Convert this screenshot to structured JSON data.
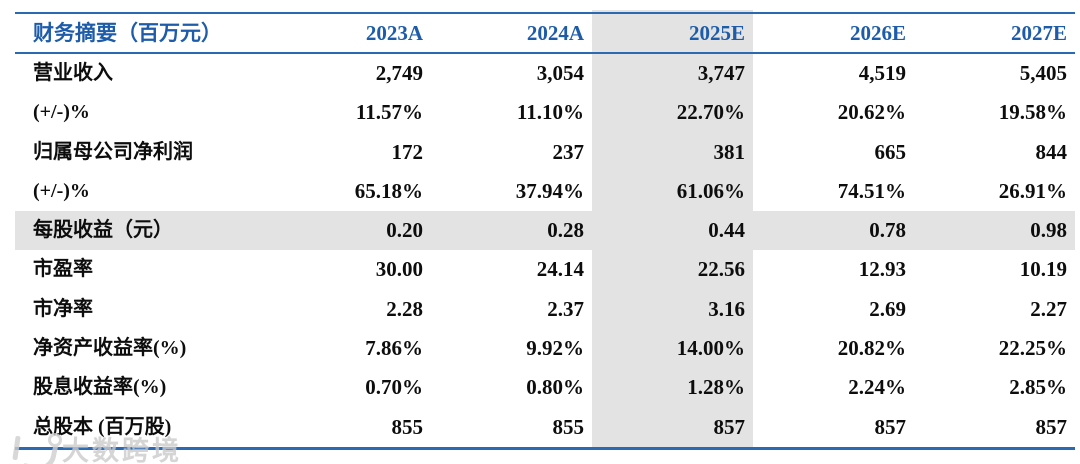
{
  "accent": {
    "rule_blue": "#2B6AB3",
    "header_blue": "#1E5CA9",
    "highlight_gray": "#E3E3E3"
  },
  "table": {
    "header": [
      "财务摘要（百万元）",
      "2023A",
      "2024A",
      "2025E",
      "2026E",
      "2027E"
    ],
    "highlight_column": "2025E",
    "highlight_column_index": 3,
    "rows": [
      {
        "label": "营业收入",
        "values": [
          "2,749",
          "3,054",
          "3,747",
          "4,519",
          "5,405"
        ]
      },
      {
        "label": "(+/-)%",
        "values": [
          "11.57%",
          "11.10%",
          "22.70%",
          "20.62%",
          "19.58%"
        ]
      },
      {
        "label": "归属母公司净利润",
        "values": [
          "172",
          "237",
          "381",
          "665",
          "844"
        ]
      },
      {
        "label": "(+/-)%",
        "values": [
          "65.18%",
          "37.94%",
          "61.06%",
          "74.51%",
          "26.91%"
        ]
      },
      {
        "label": "每股收益（元）",
        "values": [
          "0.20",
          "0.28",
          "0.44",
          "0.78",
          "0.98"
        ],
        "highlight_row": true
      },
      {
        "label": "市盈率",
        "values": [
          "30.00",
          "24.14",
          "22.56",
          "12.93",
          "10.19"
        ]
      },
      {
        "label": "市净率",
        "values": [
          "2.28",
          "2.37",
          "3.16",
          "2.69",
          "2.27"
        ]
      },
      {
        "label": "净资产收益率(%)",
        "values": [
          "7.86%",
          "9.92%",
          "14.00%",
          "20.82%",
          "22.25%"
        ]
      },
      {
        "label": "股息收益率(%)",
        "values": [
          "0.70%",
          "0.80%",
          "1.28%",
          "2.24%",
          "2.85%"
        ]
      },
      {
        "label": "总股本 (百万股)",
        "values": [
          "855",
          "855",
          "857",
          "857",
          "857"
        ]
      }
    ]
  },
  "watermark": {
    "text": "大数跨境"
  }
}
